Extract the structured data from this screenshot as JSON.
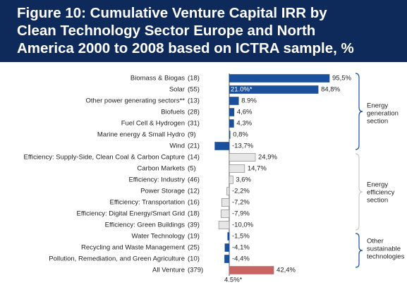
{
  "chart_data": {
    "type": "bar",
    "orientation": "horizontal",
    "title": [
      "Figure 10: Cumulative Venture Capital IRR by",
      "Clean Technology Sector Europe and North",
      "America 2000 to 2008 based on ICTRA sample, %"
    ],
    "categories": [
      "Biomass & Biogas",
      "Solar",
      "Other power generating sectors**",
      "Biofuels",
      "Fuel Cell & Hydrogen",
      "Marine energy & Small Hydro",
      "Wind",
      "Efficiency: Supply-Side, Clean Coal & Carbon Capture",
      "Carbon Markets",
      "Efficiency: Industry",
      "Power Storage",
      "Efficiency: Transportation",
      "Efficiency: Digital Energy/Smart Grid",
      "Efficiency: Green Buildings",
      "Water Technology",
      "Recycling and Waste Management",
      "Pollution, Remediation, and Green Agriculture",
      "All Venture"
    ],
    "counts": [
      "(18)",
      "(55)",
      "(13)",
      "(28)",
      "(31)",
      "(9)",
      "(21)",
      "(14)",
      "(5)",
      "(46)",
      "(12)",
      "(16)",
      "(18)",
      "(39)",
      "(19)",
      "(25)",
      "(10)",
      "(379)"
    ],
    "values": [
      95.5,
      84.8,
      8.9,
      4.6,
      4.3,
      0.8,
      -13.7,
      24.9,
      14.7,
      3.6,
      -2.2,
      -7.2,
      -7.9,
      -10.0,
      -1.5,
      -4.1,
      -4.4,
      42.4
    ],
    "value_labels": [
      "95,5%",
      "84,8%",
      "8.9%",
      "4,6%",
      "4,3%",
      "0,8%",
      "-13,7%",
      "24,9%",
      "14,7%",
      "3,6%",
      "-2,2%",
      "-7,2%",
      "-7,9%",
      "-10,0%",
      "-1,5%",
      "-4,1%",
      "-4,4%",
      "42,4%"
    ],
    "colors": [
      "#1a4f9c",
      "#1a4f9c",
      "#1a4f9c",
      "#1a4f9c",
      "#1a4f9c",
      "#1a4f9c",
      "#1a4f9c",
      "#e6e6e6",
      "#e6e6e6",
      "#e6e6e6",
      "#e6e6e6",
      "#e6e6e6",
      "#e6e6e6",
      "#e6e6e6",
      "#1a4f9c",
      "#1a4f9c",
      "#1a4f9c",
      "#c86464"
    ],
    "annotations": [
      "21.0%*",
      "4.5%*"
    ],
    "groups": [
      [
        "Energy",
        "generation",
        "section"
      ],
      [
        "Energy",
        "efficiency",
        "section"
      ],
      [
        "Other",
        "sustainable",
        "technologies"
      ]
    ]
  }
}
